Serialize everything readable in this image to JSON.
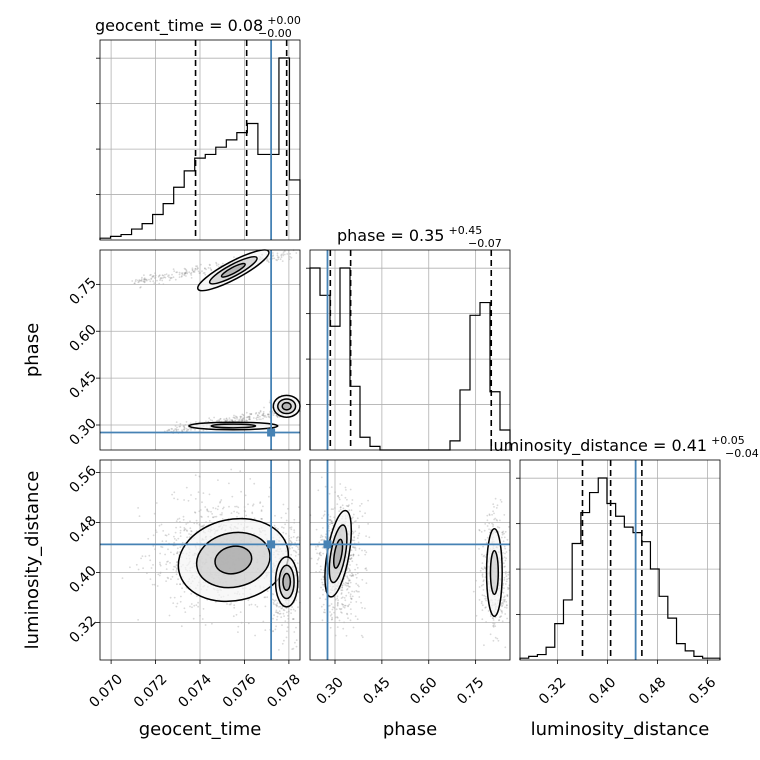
{
  "chart_data": {
    "type": "corner",
    "parameters": [
      "geocent_time",
      "phase",
      "luminosity_distance"
    ],
    "titles": [
      {
        "label": "geocent_time = 0.08",
        "upper": "+0.00",
        "lower": "−0.00"
      },
      {
        "label": "phase = 0.35",
        "upper": "+0.45",
        "lower": "−0.07"
      },
      {
        "label": "luminosity_distance = 0.41",
        "upper": "+0.05",
        "lower": "−0.04"
      }
    ],
    "axis_labels": {
      "x": [
        "geocent_time",
        "phase",
        "luminosity_distance"
      ],
      "y": [
        "phase",
        "luminosity_distance"
      ]
    },
    "ranges": {
      "geocent_time": [
        0.0695,
        0.0785
      ],
      "phase": [
        0.22,
        0.86
      ],
      "luminosity_distance": [
        0.26,
        0.58
      ]
    },
    "ticks": {
      "geocent_time": {
        "values": [
          0.07,
          0.072,
          0.074,
          0.076,
          0.078
        ],
        "labels": [
          "0.070",
          "0.072",
          "0.074",
          "0.076",
          "0.078"
        ]
      },
      "phase": {
        "values": [
          0.3,
          0.45,
          0.6,
          0.75
        ],
        "labels": [
          "0.30",
          "0.45",
          "0.60",
          "0.75"
        ]
      },
      "luminosity_distance": {
        "values": [
          0.32,
          0.4,
          0.48,
          0.56
        ],
        "labels": [
          "0.32",
          "0.40",
          "0.48",
          "0.56"
        ]
      }
    },
    "truths": {
      "geocent_time": 0.0772,
      "phase": 0.276,
      "luminosity_distance": 0.445
    },
    "quantiles": {
      "geocent_time": [
        0.0738,
        0.0761,
        0.0779
      ],
      "phase": [
        0.285,
        0.35,
        0.8
      ],
      "luminosity_distance": [
        0.36,
        0.405,
        0.455
      ]
    },
    "histograms": {
      "geocent_time": [
        0.01,
        0.02,
        0.03,
        0.06,
        0.09,
        0.14,
        0.2,
        0.29,
        0.38,
        0.45,
        0.47,
        0.51,
        0.55,
        0.59,
        0.64,
        0.47,
        0.47,
        1.0,
        0.33
      ],
      "phase": [
        1.0,
        0.85,
        0.68,
        1.0,
        0.35,
        0.07,
        0.02,
        0,
        0,
        0,
        0,
        0,
        0,
        0,
        0.05,
        0.33,
        0.74,
        0.81,
        0.32,
        0.11
      ],
      "luminosity_distance": [
        0.01,
        0.02,
        0.03,
        0.07,
        0.2,
        0.33,
        0.64,
        0.81,
        0.92,
        1.0,
        0.86,
        0.79,
        0.73,
        0.7,
        0.65,
        0.5,
        0.35,
        0.23,
        0.09,
        0.05,
        0.02,
        0.01,
        0.01
      ]
    },
    "grid": true,
    "legend": "none"
  }
}
